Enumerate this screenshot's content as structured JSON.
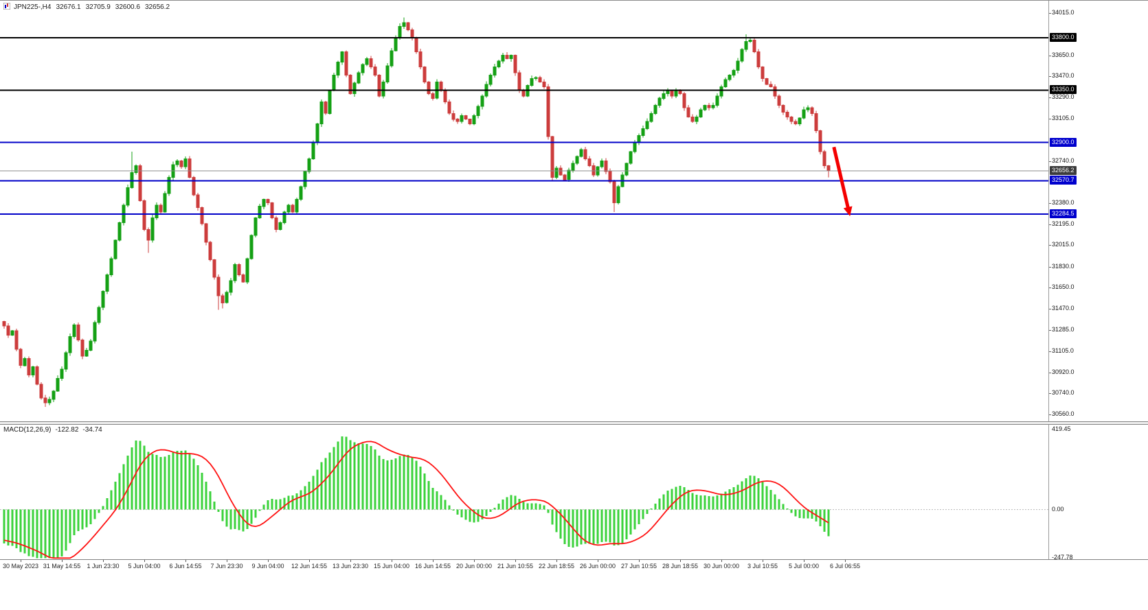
{
  "symbol_bar": {
    "title": "JPN225-,H4",
    "open": "32676.1",
    "high": "32705.9",
    "low": "32600.6",
    "close": "32656.2"
  },
  "macd": {
    "label": "MACD(12,26,9)",
    "value_main": "-122.82",
    "value_signal": "-34.74",
    "axis": [
      419.45,
      0,
      -247.78
    ]
  },
  "chart_data": {
    "type": "candlestick",
    "symbol": "JPN225",
    "timeframe": "H4",
    "quote": {
      "open": 32676.1,
      "high": 32705.9,
      "low": 32600.6,
      "close": 32656.2
    },
    "price_range": [
      30500,
      34120
    ],
    "price_axis_labels": [
      34015,
      33650,
      33470,
      33290,
      33105,
      32740,
      32380,
      32195,
      32015,
      31830,
      31650,
      31470,
      31285,
      31105,
      30920,
      30740,
      30560
    ],
    "levels": [
      {
        "price": 33800,
        "style": "black"
      },
      {
        "price": 33350,
        "style": "black"
      },
      {
        "price": 32900,
        "style": "blue"
      },
      {
        "price": 32570.7,
        "style": "blue"
      },
      {
        "price": 32284.5,
        "style": "blue"
      },
      {
        "price": 32656.2,
        "style": "current"
      }
    ],
    "time_labels": [
      "30 May 2023",
      "31 May 14:55",
      "1 Jun 23:30",
      "5 Jun 04:00",
      "6 Jun 14:55",
      "7 Jun 23:30",
      "9 Jun 04:00",
      "12 Jun 14:55",
      "13 Jun 23:30",
      "15 Jun 04:00",
      "16 Jun 14:55",
      "20 Jun 00:00",
      "21 Jun 10:55",
      "22 Jun 18:55",
      "26 Jun 00:00",
      "27 Jun 10:55",
      "28 Jun 18:55",
      "30 Jun 00:00",
      "3 Jul 10:55",
      "5 Jul 00:00",
      "6 Jul 06:55"
    ],
    "candles": {
      "first_open": 31360,
      "closes": [
        31320,
        31240,
        31280,
        31120,
        30980,
        31040,
        30900,
        30970,
        30820,
        30700,
        30660,
        30690,
        30760,
        30870,
        30950,
        31090,
        31230,
        31330,
        31200,
        31060,
        31110,
        31190,
        31350,
        31480,
        31620,
        31760,
        31900,
        32060,
        32210,
        32360,
        32510,
        32640,
        32700,
        32400,
        32150,
        32060,
        32250,
        32360,
        32300,
        32460,
        32600,
        32710,
        32740,
        32690,
        32760,
        32600,
        32450,
        32340,
        32200,
        32040,
        31890,
        31740,
        31580,
        31520,
        31610,
        31710,
        31850,
        31760,
        31700,
        31900,
        32100,
        32250,
        32350,
        32410,
        32380,
        32250,
        32150,
        32210,
        32300,
        32360,
        32300,
        32410,
        32520,
        32650,
        32760,
        32900,
        33060,
        33250,
        33150,
        33350,
        33480,
        33590,
        33680,
        33480,
        33320,
        33410,
        33500,
        33570,
        33620,
        33550,
        33480,
        33300,
        33420,
        33560,
        33690,
        33800,
        33900,
        33930,
        33870,
        33800,
        33680,
        33550,
        33420,
        33320,
        33280,
        33420,
        33350,
        33250,
        33150,
        33100,
        33080,
        33130,
        33100,
        33060,
        33130,
        33210,
        33300,
        33400,
        33480,
        33550,
        33600,
        33650,
        33620,
        33650,
        33500,
        33350,
        33300,
        33390,
        33450,
        33460,
        33420,
        33380,
        32950,
        32600,
        32680,
        32620,
        32580,
        32660,
        32720,
        32780,
        32840,
        32760,
        32700,
        32620,
        32690,
        32740,
        32650,
        32560,
        32380,
        32520,
        32620,
        32720,
        32820,
        32900,
        32960,
        33020,
        33080,
        33150,
        33220,
        33280,
        33320,
        33350,
        33300,
        33350,
        33320,
        33200,
        33120,
        33080,
        33120,
        33180,
        33220,
        33200,
        33220,
        33300,
        33380,
        33440,
        33480,
        33520,
        33600,
        33700,
        33770,
        33780,
        33680,
        33550,
        33450,
        33400,
        33380,
        33300,
        33220,
        33160,
        33120,
        33080,
        33060,
        33110,
        33180,
        33200,
        33150,
        33000,
        32820,
        32700,
        32656.2
      ],
      "wick_overrides": {
        "10": {
          "low": 30625
        },
        "31": {
          "high": 32820
        },
        "35": {
          "low": 31950
        },
        "52": {
          "low": 31460
        },
        "53": {
          "low": 31470
        },
        "97": {
          "high": 33975
        },
        "148": {
          "low": 32300
        },
        "180": {
          "high": 33830
        },
        "200": {
          "high": 32705.9,
          "low": 32600.6
        }
      }
    },
    "indicator": {
      "name": "MACD",
      "fast": 12,
      "slow": 26,
      "signal": 9,
      "last_main": -122.82,
      "last_signal": -34.74,
      "axis_max": 419.45,
      "axis_min": -247.78
    },
    "macd_warmup": {
      "from": 32250,
      "to": 31400,
      "count": 30
    },
    "annotation": {
      "type": "arrow",
      "i1": 201.3,
      "price1": 32860,
      "i2": 205.2,
      "price2": 32265,
      "color": "#f40000"
    },
    "colors": {
      "bull": "#14a014",
      "bear": "#cc3c3c",
      "level_black": "#000000",
      "level_blue": "#0000c8",
      "current_line": "#8c8c8c",
      "macd_hist": "#3bd23b",
      "macd_signal": "#ff1111",
      "badge_black": "#000000",
      "badge_blue": "#0000cd",
      "badge_current": "#3c3c3c"
    }
  }
}
